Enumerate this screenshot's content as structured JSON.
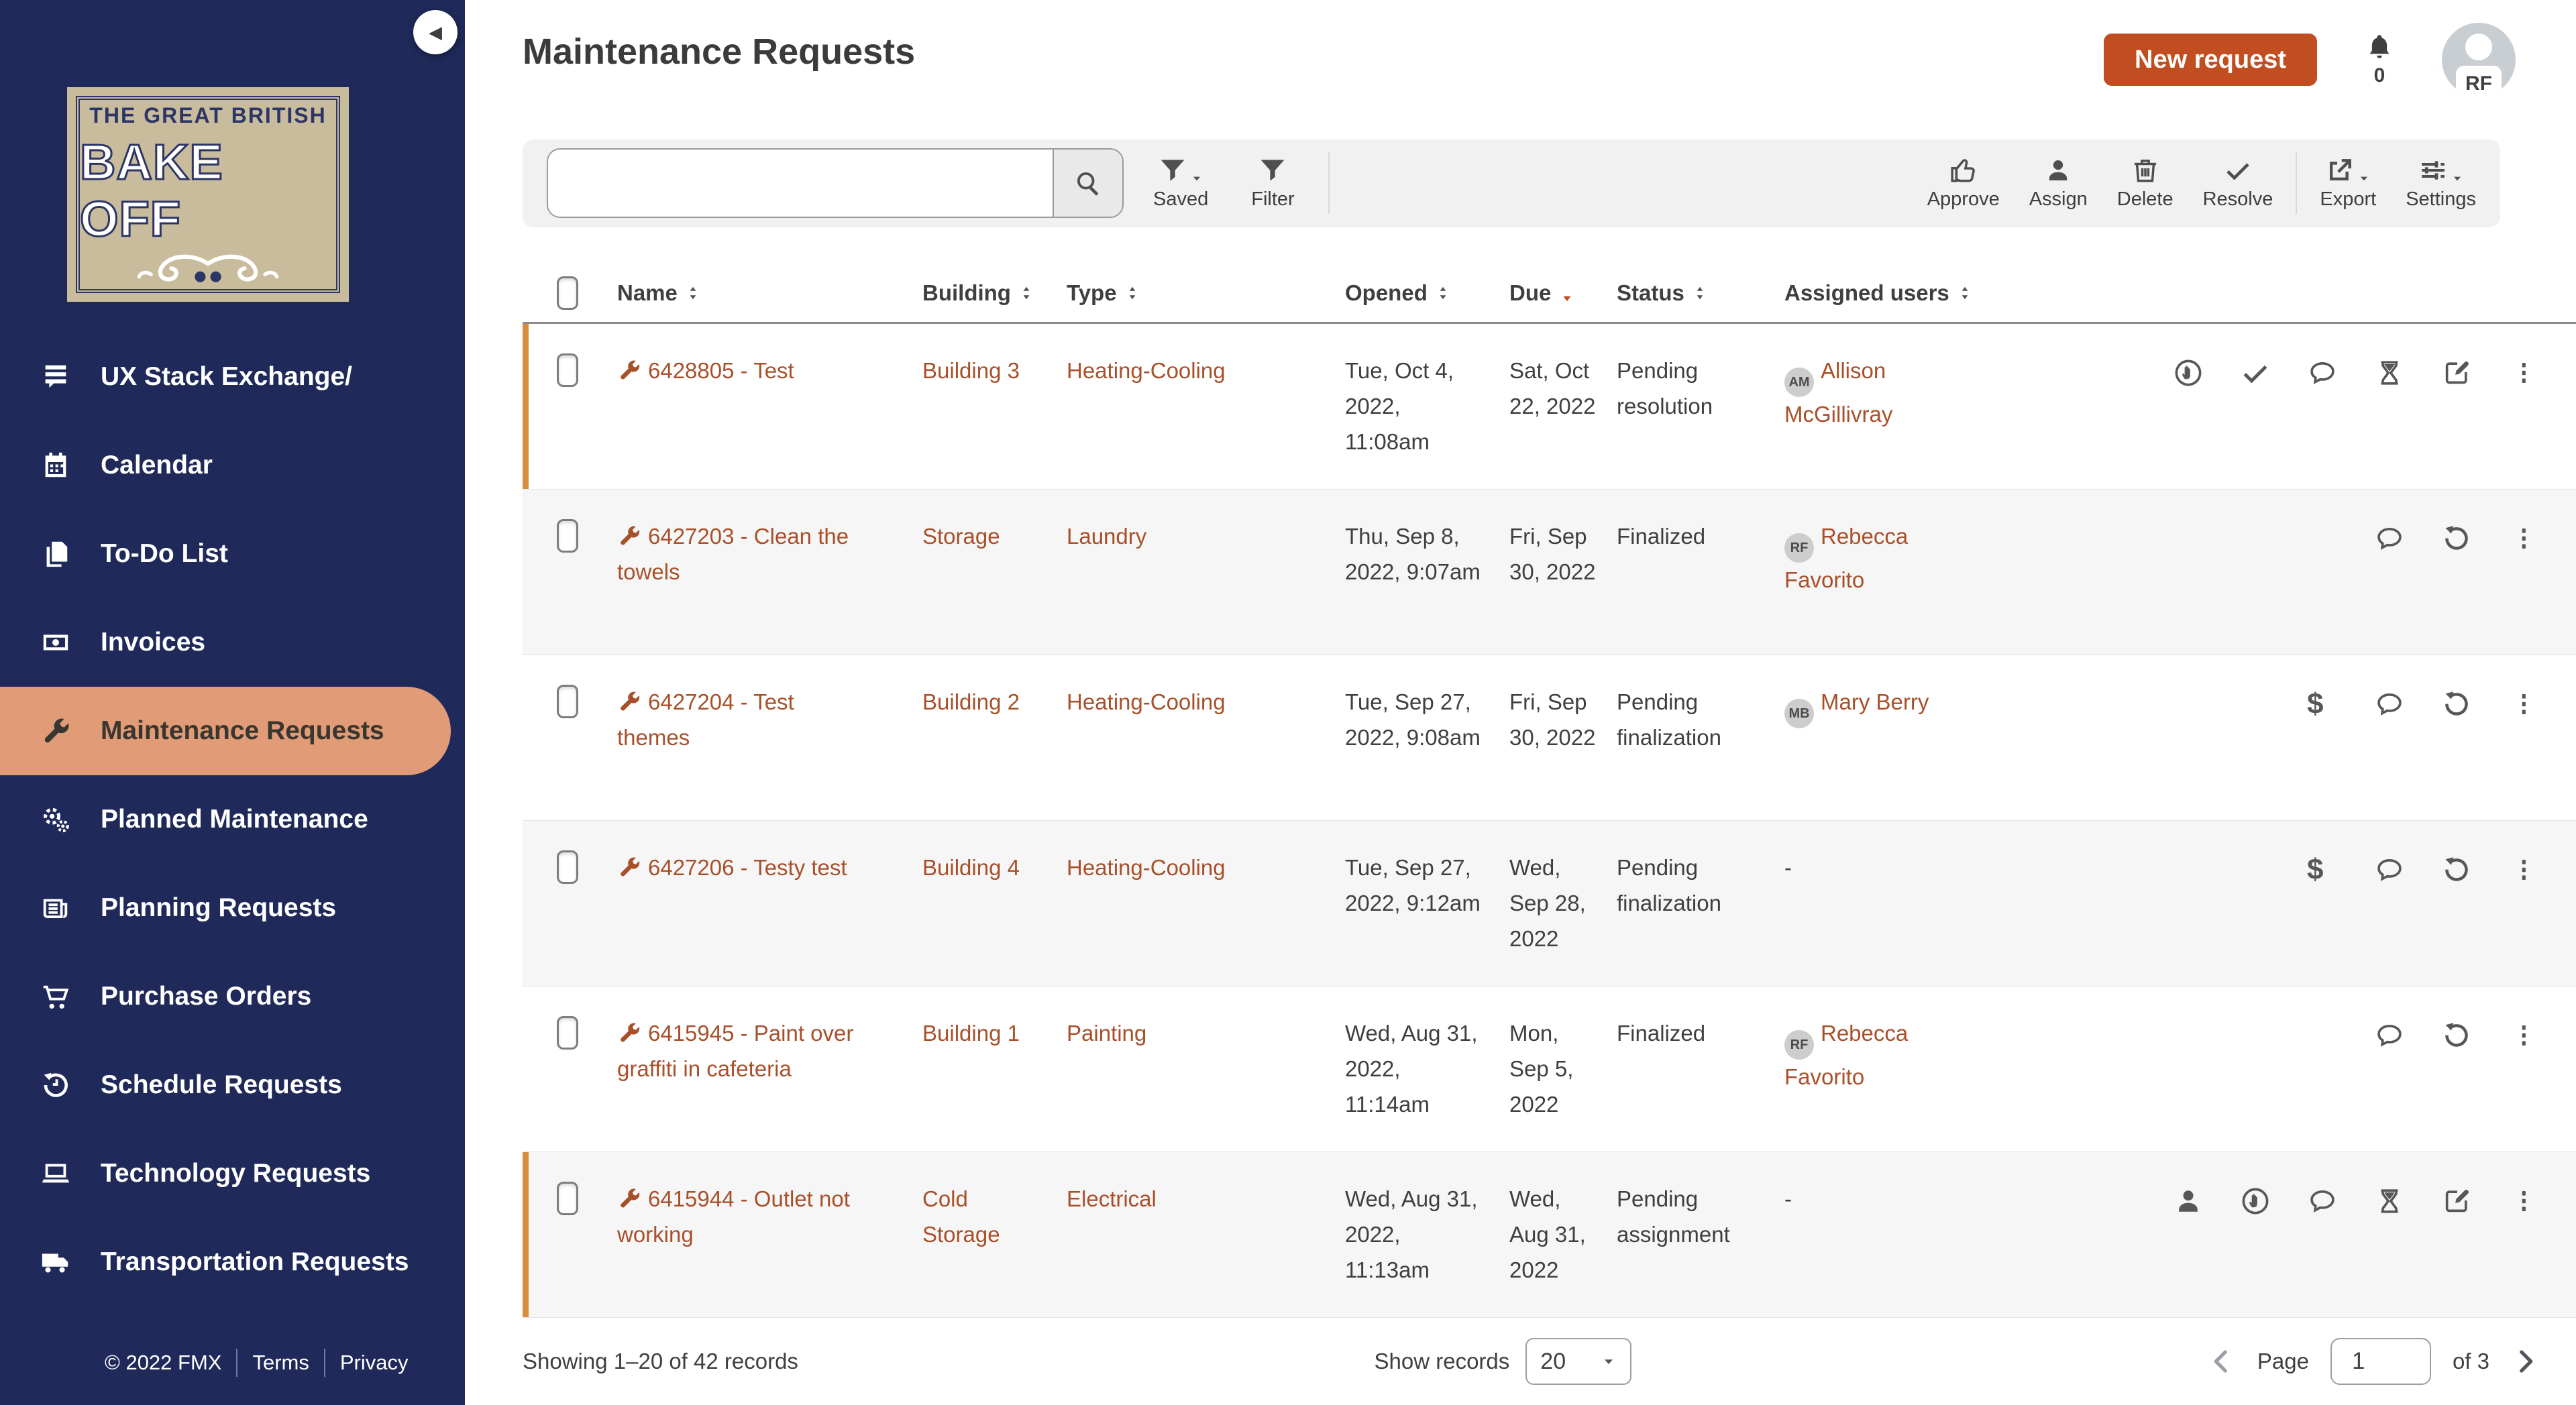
{
  "colors": {
    "accent": "#c14e20",
    "link": "#a8502a",
    "sidebar": "#1f2a5a",
    "active_item": "#e29b77",
    "flag_border": "#d88c3c"
  },
  "sidebar": {
    "logo": {
      "line1": "THE GREAT BRITISH",
      "line2": "BAKE OFF"
    },
    "nav": [
      {
        "label": "UX Stack Exchange/",
        "icon": "forum-comments",
        "active": false
      },
      {
        "label": "Calendar",
        "icon": "calendar",
        "active": false
      },
      {
        "label": "To-Do List",
        "icon": "copy",
        "active": false
      },
      {
        "label": "Invoices",
        "icon": "banknote",
        "active": false
      },
      {
        "label": "Maintenance Requests",
        "icon": "wrench",
        "active": true
      },
      {
        "label": "Planned Maintenance",
        "icon": "gears",
        "active": false
      },
      {
        "label": "Planning Requests",
        "icon": "newspaper",
        "active": false
      },
      {
        "label": "Purchase Orders",
        "icon": "shopping-cart",
        "active": false
      },
      {
        "label": "Schedule Requests",
        "icon": "clock-rotate",
        "active": false
      },
      {
        "label": "Technology Requests",
        "icon": "laptop",
        "active": false
      },
      {
        "label": "Transportation Requests",
        "icon": "truck",
        "active": false
      }
    ],
    "footer": {
      "copyright": "© 2022 FMX",
      "terms": "Terms",
      "privacy": "Privacy"
    }
  },
  "header": {
    "title": "Maintenance Requests",
    "new_request_label": "New request",
    "notification_count": "0",
    "avatar_initials": "RF"
  },
  "toolbar": {
    "search_value": "",
    "saved_label": "Saved",
    "filter_label": "Filter",
    "actions": [
      {
        "label": "Approve",
        "icon": "thumbs-up"
      },
      {
        "label": "Assign",
        "icon": "person"
      },
      {
        "label": "Delete",
        "icon": "trash"
      },
      {
        "label": "Resolve",
        "icon": "check"
      }
    ],
    "menus": [
      {
        "label": "Export",
        "icon": "export-arrow"
      },
      {
        "label": "Settings",
        "icon": "sliders"
      }
    ]
  },
  "table": {
    "columns": [
      {
        "label": "Name",
        "sort": "both"
      },
      {
        "label": "Building",
        "sort": "both"
      },
      {
        "label": "Type",
        "sort": "both"
      },
      {
        "label": "Opened",
        "sort": "both"
      },
      {
        "label": "Due",
        "sort": "desc"
      },
      {
        "label": "Status",
        "sort": "both"
      },
      {
        "label": "Assigned users",
        "sort": "both"
      }
    ],
    "empty_assigned": "-",
    "rows": [
      {
        "name": "6428805 - Test",
        "building": "Building 3",
        "type": "Heating-Cooling",
        "opened": "Tue, Oct 4, 2022, 11:08am",
        "due": "Sat, Oct 22, 2022",
        "status": "Pending resolution",
        "assigned": {
          "initials": "AM",
          "name": "Allison McGillivray"
        },
        "flagged": true,
        "icons": [
          "hand-circle",
          "check",
          "speech-bubble",
          "hourglass",
          "edit-pencil",
          "kebab-menu"
        ]
      },
      {
        "name": "6427203 - Clean the towels",
        "building": "Storage",
        "type": "Laundry",
        "opened": "Thu, Sep 8, 2022, 9:07am",
        "due": "Fri, Sep 30, 2022",
        "status": "Finalized",
        "assigned": {
          "initials": "RF",
          "name": "Rebecca Favorito"
        },
        "flagged": false,
        "icons": [
          "speech-bubble",
          "undo-arrow",
          "kebab-menu"
        ]
      },
      {
        "name": "6427204 - Test themes",
        "building": "Building 2",
        "type": "Heating-Cooling",
        "opened": "Tue, Sep 27, 2022, 9:08am",
        "due": "Fri, Sep 30, 2022",
        "status": "Pending finalization",
        "assigned": {
          "initials": "MB",
          "name": "Mary Berry"
        },
        "flagged": false,
        "icons": [
          "dollar",
          "speech-bubble",
          "undo-arrow",
          "kebab-menu"
        ]
      },
      {
        "name": "6427206 - Testy test",
        "building": "Building 4",
        "type": "Heating-Cooling",
        "opened": "Tue, Sep 27, 2022, 9:12am",
        "due": "Wed, Sep 28, 2022",
        "status": "Pending finalization",
        "assigned": null,
        "flagged": false,
        "icons": [
          "dollar",
          "speech-bubble",
          "undo-arrow",
          "kebab-menu"
        ]
      },
      {
        "name": "6415945 - Paint over graffiti in cafeteria",
        "building": "Building 1",
        "type": "Painting",
        "opened": "Wed, Aug 31, 2022, 11:14am",
        "due": "Mon, Sep 5, 2022",
        "status": "Finalized",
        "assigned": {
          "initials": "RF",
          "name": "Rebecca Favorito"
        },
        "flagged": false,
        "icons": [
          "speech-bubble",
          "undo-arrow",
          "kebab-menu"
        ]
      },
      {
        "name": "6415944 - Outlet not working",
        "building": "Cold Storage",
        "type": "Electrical",
        "opened": "Wed, Aug 31, 2022, 11:13am",
        "due": "Wed, Aug 31, 2022",
        "status": "Pending assignment",
        "assigned": null,
        "flagged": true,
        "icons": [
          "person",
          "hand-circle",
          "speech-bubble",
          "hourglass",
          "edit-pencil",
          "kebab-menu"
        ]
      }
    ]
  },
  "footerbar": {
    "showing": "Showing 1–20 of 42 records",
    "show_records_label": "Show records",
    "page_size": "20",
    "page_label": "Page",
    "page_number": "1",
    "page_total_label": "of 3"
  }
}
